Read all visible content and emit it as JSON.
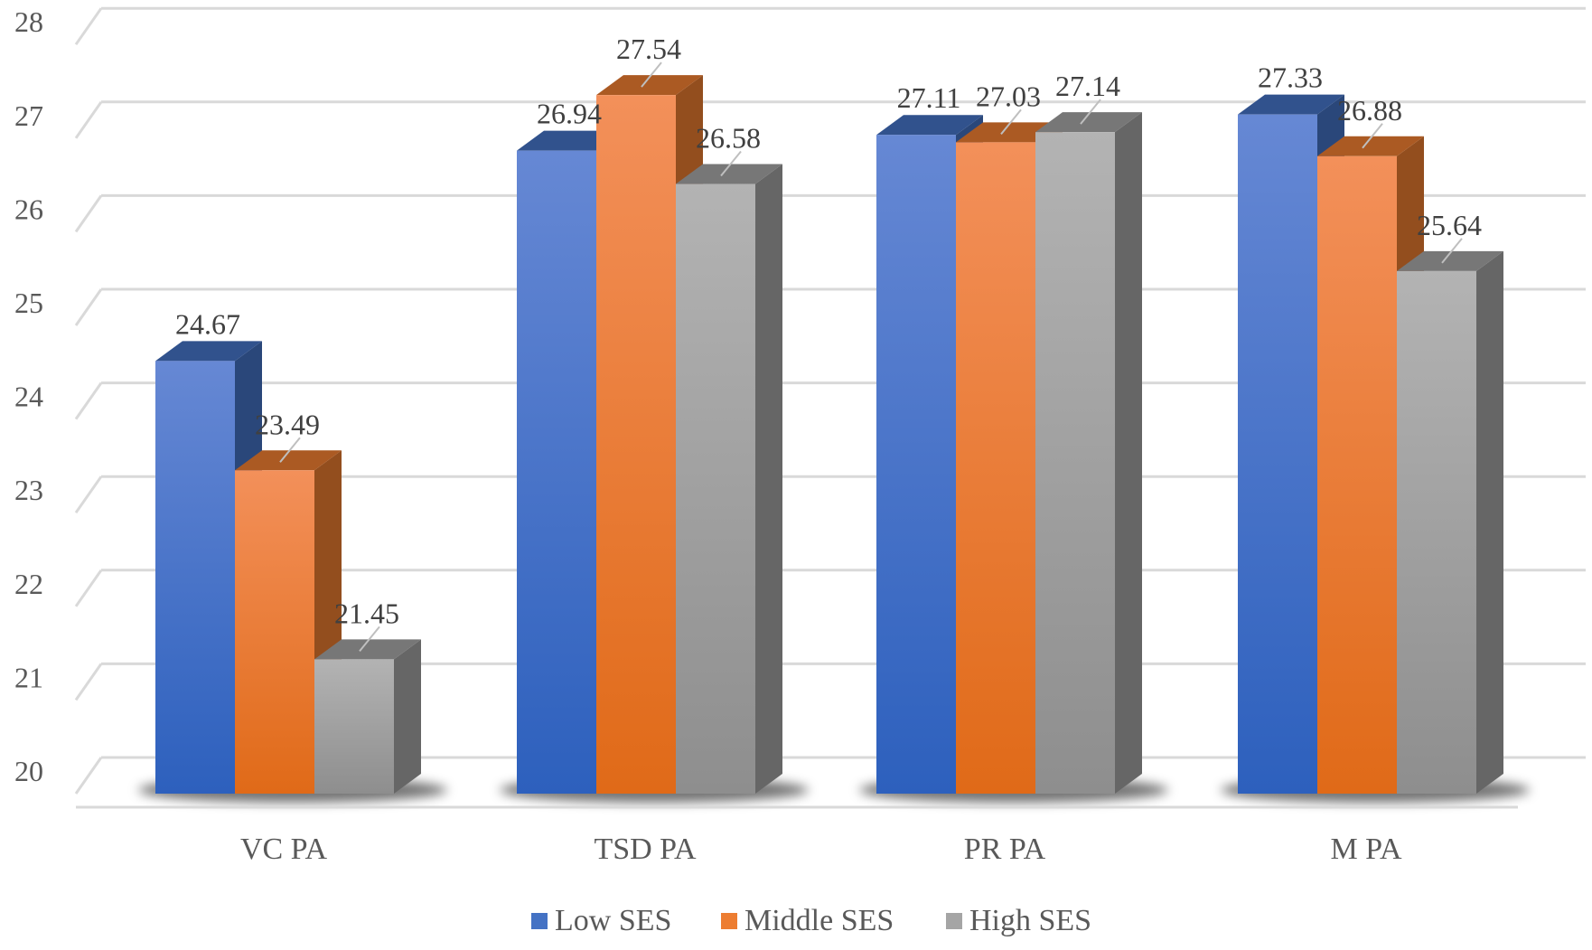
{
  "chart_data": {
    "type": "bar",
    "title": "",
    "xlabel": "",
    "ylabel": "",
    "categories": [
      "VC PA",
      "TSD PA",
      "PR PA",
      "M PA"
    ],
    "series": [
      {
        "name": "Low SES",
        "values": [
          24.67,
          26.94,
          27.11,
          27.33
        ],
        "labels": [
          "24.67",
          "26.94",
          "27.11",
          "27.33"
        ],
        "color": "#4472c4"
      },
      {
        "name": "Middle SES",
        "values": [
          23.49,
          27.54,
          27.03,
          26.88
        ],
        "labels": [
          "23.49",
          "27.54",
          "27.03",
          "26.88"
        ],
        "color": "#ed7d31"
      },
      {
        "name": "High SES",
        "values": [
          21.45,
          26.58,
          27.14,
          25.64
        ],
        "labels": [
          "21.45",
          "26.58",
          "27.14",
          "25.64"
        ],
        "color": "#a5a5a5"
      }
    ],
    "ylim": [
      20,
      28
    ],
    "yticks": [
      "20",
      "21",
      "22",
      "23",
      "24",
      "25",
      "26",
      "27",
      "28"
    ],
    "grid": true,
    "style": "3d-column",
    "legend": {
      "position": "bottom",
      "entries": [
        "Low SES",
        "Middle SES",
        "High SES"
      ]
    }
  }
}
